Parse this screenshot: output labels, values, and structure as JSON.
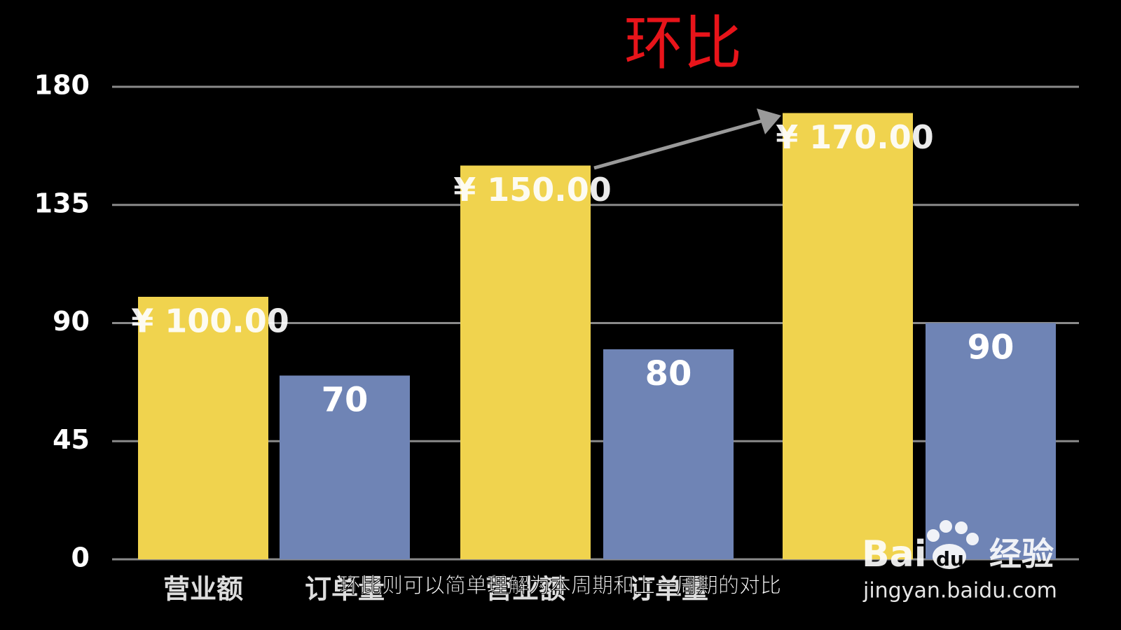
{
  "chart_data": {
    "type": "bar",
    "title": "环比",
    "categories": [
      "营业额",
      "订单量",
      "营业额",
      "订单量",
      null,
      null
    ],
    "values": [
      100,
      70,
      150,
      80,
      170,
      90
    ],
    "value_labels": [
      "¥ 100.00",
      "70",
      "¥ 150.00",
      "80",
      "¥ 170.00",
      "90"
    ],
    "colors": [
      "#f0d34e",
      "#6f84b5",
      "#f0d34e",
      "#6f84b5",
      "#f0d34e",
      "#6f84b5"
    ],
    "ylim": [
      0,
      180
    ],
    "yticks": [
      0,
      45,
      90,
      135,
      180
    ],
    "grid": true
  },
  "caption": "环比则可以简单理解为本周期和上一周期的对比",
  "watermark": {
    "brand_left": "Bai",
    "brand_right": "du",
    "brand_cn": "经验",
    "url": "jingyan.baidu.com"
  }
}
